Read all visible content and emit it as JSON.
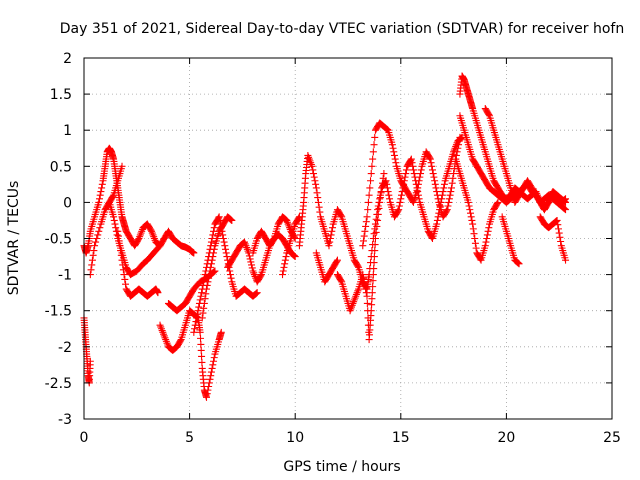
{
  "chart_data": {
    "type": "scatter",
    "title": "Day 351 of 2021, Sidereal Day-to-day VTEC variation (SDTVAR) for receiver hofn",
    "xlabel": "GPS time / hours",
    "ylabel": "SDTVAR / TECUs",
    "xlim": [
      0,
      25
    ],
    "ylim": [
      -3,
      2
    ],
    "x_ticks": [
      "0",
      "5",
      "10",
      "15",
      "20",
      "25"
    ],
    "y_ticks": [
      "-3",
      "-2.5",
      "-2",
      "-1.5",
      "-1",
      "-0.5",
      "0",
      "0.5",
      "1",
      "1.5",
      "2"
    ],
    "grid": true,
    "marker": "+",
    "series": [
      {
        "name": "SDTVAR",
        "color": "#ff0000",
        "tracks": [
          {
            "x": [
              0.0,
              0.1,
              0.2,
              0.3,
              0.5,
              0.7,
              0.9,
              1.0,
              1.1,
              1.2,
              1.3,
              1.4,
              1.5,
              1.6,
              1.7,
              1.8,
              1.9,
              2.0,
              2.2,
              2.4,
              2.6,
              2.8,
              3.0,
              3.2,
              3.4,
              3.6,
              3.8,
              4.0,
              4.2,
              4.4,
              4.6,
              4.8,
              5.0,
              5.1,
              5.2
            ],
            "y": [
              -0.6,
              -0.7,
              -0.6,
              -0.4,
              -0.2,
              0.0,
              0.3,
              0.5,
              0.7,
              0.75,
              0.7,
              0.6,
              0.4,
              0.2,
              0.0,
              -0.2,
              -0.3,
              -0.4,
              -0.5,
              -0.6,
              -0.5,
              -0.35,
              -0.3,
              -0.4,
              -0.55,
              -0.6,
              -0.5,
              -0.4,
              -0.5,
              -0.55,
              -0.6,
              -0.62,
              -0.65,
              -0.68,
              -0.7
            ]
          },
          {
            "x": [
              0.0,
              0.05,
              0.1,
              0.15,
              0.2,
              0.25,
              0.3
            ],
            "y": [
              -1.6,
              -1.8,
              -2.0,
              -2.2,
              -2.4,
              -2.5,
              -2.2
            ]
          },
          {
            "x": [
              0.3,
              0.5,
              0.8,
              1.0,
              1.2,
              1.4,
              1.6,
              1.8
            ],
            "y": [
              -1.0,
              -0.6,
              -0.3,
              -0.1,
              0.0,
              0.1,
              0.3,
              0.5
            ]
          },
          {
            "x": [
              1.6,
              1.8,
              2.0,
              2.2,
              2.4,
              2.6,
              2.8,
              3.0,
              3.2,
              3.4,
              3.5
            ],
            "y": [
              -0.4,
              -0.8,
              -1.2,
              -1.3,
              -1.25,
              -1.2,
              -1.25,
              -1.3,
              -1.25,
              -1.2,
              -1.25
            ]
          },
          {
            "x": [
              1.2,
              1.4,
              1.6,
              1.8,
              2.0,
              2.2,
              2.5,
              2.8,
              3.0,
              3.3,
              3.6
            ],
            "y": [
              0.0,
              -0.2,
              -0.5,
              -0.7,
              -0.9,
              -1.0,
              -0.95,
              -0.85,
              -0.8,
              -0.7,
              -0.6
            ]
          },
          {
            "x": [
              3.6,
              3.8,
              4.0,
              4.2,
              4.4,
              4.6,
              4.8,
              5.0,
              5.2,
              5.4,
              5.5,
              5.6,
              5.7,
              5.8,
              6.0,
              6.2,
              6.4,
              6.5
            ],
            "y": [
              -1.7,
              -1.85,
              -2.0,
              -2.05,
              -2.0,
              -1.9,
              -1.7,
              -1.5,
              -1.55,
              -1.6,
              -1.8,
              -2.3,
              -2.6,
              -2.7,
              -2.4,
              -2.1,
              -1.9,
              -1.8
            ]
          },
          {
            "x": [
              4.0,
              4.2,
              4.4,
              4.6,
              4.8,
              5.0,
              5.2,
              5.5,
              5.8,
              6.0,
              6.2
            ],
            "y": [
              -1.4,
              -1.45,
              -1.5,
              -1.45,
              -1.4,
              -1.3,
              -1.2,
              -1.1,
              -1.05,
              -1.0,
              -0.95
            ]
          },
          {
            "x": [
              5.2,
              5.4,
              5.6,
              5.8,
              6.0,
              6.2,
              6.4,
              6.6,
              6.8,
              7.0,
              7.2,
              7.4,
              7.6,
              7.8,
              8.0,
              8.2
            ],
            "y": [
              -1.8,
              -1.5,
              -1.2,
              -0.9,
              -0.6,
              -0.3,
              -0.2,
              -0.5,
              -0.8,
              -1.1,
              -1.3,
              -1.25,
              -1.2,
              -1.25,
              -1.3,
              -1.25
            ]
          },
          {
            "x": [
              5.6,
              5.8,
              6.0,
              6.2,
              6.4,
              6.6,
              6.8,
              7.0
            ],
            "y": [
              -1.6,
              -1.2,
              -0.9,
              -0.6,
              -0.4,
              -0.3,
              -0.2,
              -0.25
            ]
          },
          {
            "x": [
              6.8,
              7.0,
              7.2,
              7.4,
              7.6,
              7.8,
              8.0,
              8.2,
              8.4,
              8.6,
              8.8,
              9.0,
              9.2,
              9.4,
              9.6,
              9.8,
              10.0
            ],
            "y": [
              -0.9,
              -0.8,
              -0.7,
              -0.6,
              -0.55,
              -0.7,
              -0.95,
              -1.1,
              -1.0,
              -0.8,
              -0.6,
              -0.5,
              -0.45,
              -0.5,
              -0.6,
              -0.7,
              -0.75
            ]
          },
          {
            "x": [
              8.0,
              8.2,
              8.4,
              8.6,
              8.8,
              9.0,
              9.2,
              9.4,
              9.6,
              9.8,
              10.0
            ],
            "y": [
              -0.7,
              -0.5,
              -0.4,
              -0.5,
              -0.6,
              -0.5,
              -0.3,
              -0.2,
              -0.25,
              -0.4,
              -0.5
            ]
          },
          {
            "x": [
              9.4,
              9.6,
              9.8,
              10.0,
              10.2
            ],
            "y": [
              -1.0,
              -0.7,
              -0.5,
              -0.3,
              -0.2
            ]
          },
          {
            "x": [
              10.2,
              10.3,
              10.4,
              10.5,
              10.6,
              10.8,
              11.0,
              11.2,
              11.4,
              11.6,
              11.8,
              12.0,
              12.2,
              12.4,
              12.6,
              12.8,
              13.0,
              13.2,
              13.4,
              13.5
            ],
            "y": [
              -0.6,
              -0.3,
              0.0,
              0.4,
              0.65,
              0.5,
              0.2,
              -0.2,
              -0.4,
              -0.6,
              -0.3,
              -0.1,
              -0.2,
              -0.4,
              -0.6,
              -0.8,
              -0.9,
              -1.1,
              -1.2,
              -1.0
            ]
          },
          {
            "x": [
              11.0,
              11.2,
              11.4,
              11.6,
              11.8,
              12.0
            ],
            "y": [
              -0.7,
              -0.9,
              -1.1,
              -1.0,
              -0.9,
              -0.8
            ]
          },
          {
            "x": [
              12.0,
              12.2,
              12.4,
              12.6,
              12.8,
              13.0,
              13.2,
              13.4,
              13.5,
              13.6,
              13.7,
              13.8,
              14.0,
              14.2
            ],
            "y": [
              -1.0,
              -1.1,
              -1.3,
              -1.5,
              -1.35,
              -1.2,
              -1.0,
              -1.3,
              -1.9,
              -1.5,
              -1.0,
              -0.5,
              0.0,
              0.4
            ]
          },
          {
            "x": [
              13.2,
              13.4,
              13.6,
              13.8,
              14.0,
              14.2,
              14.4,
              14.6,
              14.8,
              15.0,
              15.2,
              15.4,
              15.6,
              15.8,
              16.0,
              16.2,
              16.4,
              16.6,
              16.8,
              17.0,
              17.2,
              17.4,
              17.6,
              17.8
            ],
            "y": [
              -0.6,
              -0.2,
              0.4,
              1.0,
              1.1,
              1.05,
              1.0,
              0.8,
              0.5,
              0.3,
              0.2,
              0.1,
              0.0,
              0.2,
              0.5,
              0.7,
              0.6,
              0.3,
              0.0,
              -0.2,
              -0.1,
              0.2,
              0.6,
              0.9
            ]
          },
          {
            "x": [
              13.5,
              13.7,
              13.9,
              14.1,
              14.3,
              14.5,
              14.7,
              14.9,
              15.1,
              15.3,
              15.5,
              15.7,
              15.9,
              16.1,
              16.3,
              16.5,
              16.7,
              16.9,
              17.1,
              17.3,
              17.5,
              17.7,
              17.9
            ],
            "y": [
              -1.0,
              -0.5,
              -0.1,
              0.2,
              0.3,
              0.0,
              -0.2,
              -0.1,
              0.2,
              0.5,
              0.6,
              0.3,
              0.0,
              -0.2,
              -0.4,
              -0.5,
              -0.3,
              0.0,
              0.3,
              0.5,
              0.7,
              0.85,
              0.9
            ]
          },
          {
            "x": [
              17.8,
              17.9,
              18.0,
              18.1,
              18.2,
              18.3,
              18.4,
              18.6,
              18.8,
              19.0,
              19.2,
              19.4,
              19.6,
              19.8,
              20.0,
              20.2,
              20.4,
              20.6,
              20.8,
              21.0,
              21.2,
              21.4,
              21.6,
              21.8,
              22.0,
              22.2,
              22.4,
              22.6,
              22.8
            ],
            "y": [
              1.5,
              1.75,
              1.7,
              1.6,
              1.5,
              1.4,
              1.3,
              1.1,
              0.9,
              0.7,
              0.5,
              0.3,
              0.2,
              0.1,
              0.05,
              0.1,
              0.2,
              0.15,
              0.1,
              0.05,
              0.1,
              0.15,
              0.0,
              -0.1,
              0.05,
              0.15,
              0.1,
              0.05,
              0.0
            ]
          },
          {
            "x": [
              17.8,
              18.0,
              18.2,
              18.4,
              18.6,
              18.8,
              19.0,
              19.2,
              19.4,
              19.6,
              19.8,
              20.0,
              20.2,
              20.4,
              20.6,
              20.8,
              21.0,
              21.2,
              21.4,
              21.6,
              21.8,
              22.0,
              22.2,
              22.4,
              22.6,
              22.8
            ],
            "y": [
              1.2,
              1.0,
              0.8,
              0.6,
              0.5,
              0.4,
              0.3,
              0.2,
              0.15,
              0.1,
              0.05,
              0.0,
              0.05,
              0.1,
              0.15,
              0.2,
              0.25,
              0.15,
              0.1,
              0.0,
              0.05,
              0.1,
              0.05,
              0.0,
              -0.05,
              -0.1
            ]
          },
          {
            "x": [
              17.6,
              17.8,
              18.0,
              18.2,
              18.4,
              18.6,
              18.8,
              19.0,
              19.2,
              19.4,
              19.6
            ],
            "y": [
              0.6,
              0.4,
              0.2,
              0.0,
              -0.3,
              -0.7,
              -0.8,
              -0.6,
              -0.3,
              -0.1,
              0.0
            ]
          },
          {
            "x": [
              19.0,
              19.2,
              19.4,
              19.6,
              19.8,
              20.0,
              20.2,
              20.4,
              20.6,
              20.8,
              21.0,
              21.2,
              21.4,
              21.6,
              21.8,
              22.0,
              22.2,
              22.4,
              22.6,
              22.8
            ],
            "y": [
              1.3,
              1.2,
              1.0,
              0.8,
              0.6,
              0.4,
              0.2,
              0.0,
              0.1,
              0.2,
              0.3,
              0.2,
              0.1,
              0.0,
              -0.1,
              0.0,
              0.1,
              0.05,
              0.0,
              0.05
            ]
          },
          {
            "x": [
              19.8,
              20.0,
              20.2,
              20.4,
              20.6
            ],
            "y": [
              -0.2,
              -0.4,
              -0.6,
              -0.8,
              -0.85
            ]
          },
          {
            "x": [
              21.6,
              21.8,
              22.0,
              22.2,
              22.4,
              22.6,
              22.8
            ],
            "y": [
              -0.2,
              -0.3,
              -0.35,
              -0.3,
              -0.25,
              -0.6,
              -0.8
            ]
          }
        ]
      }
    ]
  }
}
